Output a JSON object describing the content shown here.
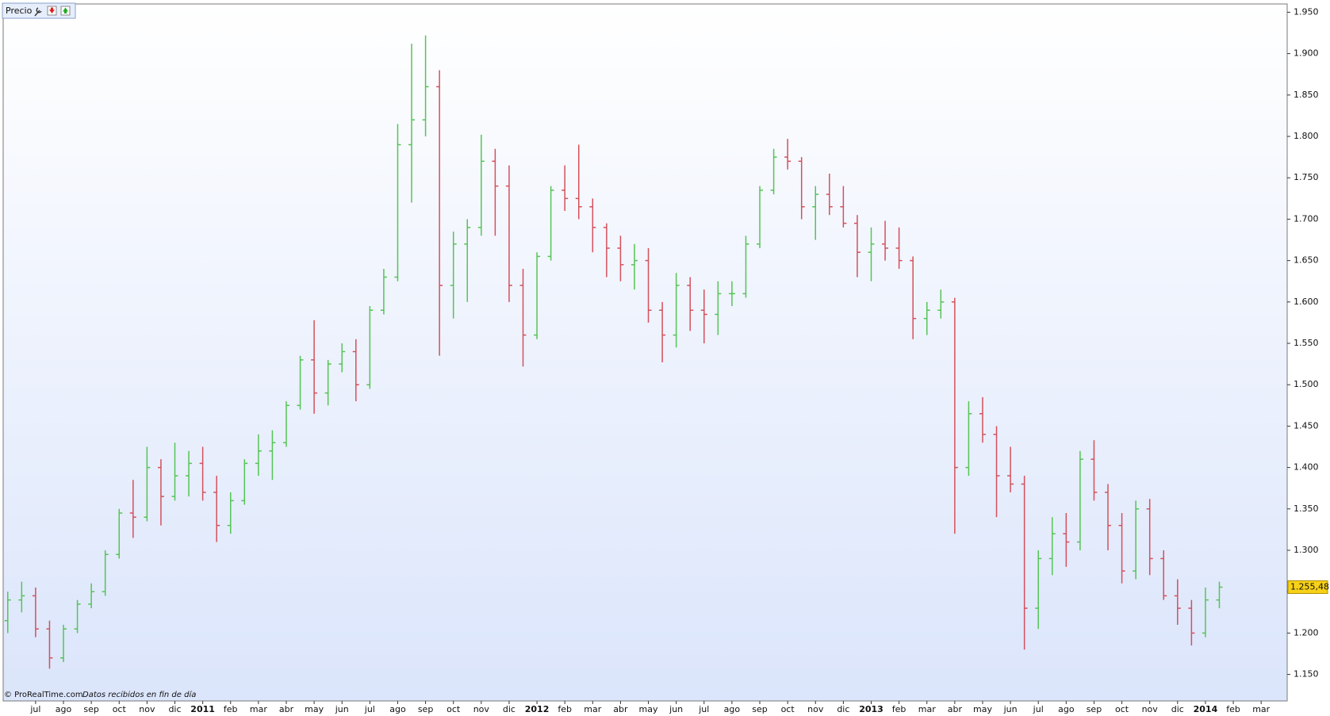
{
  "chart_data": {
    "type": "ohlc",
    "legend_label": "Precio",
    "footer_brand": "© ProRealTime.com",
    "footer_note": "Datos recibidos en fin de día",
    "up_color": "#55c455",
    "down_color": "#d4505c",
    "grid": false,
    "categories": [
      null,
      null,
      "jul",
      null,
      "ago",
      null,
      "sep",
      null,
      "oct",
      null,
      "nov",
      null,
      "dic",
      null,
      "2011",
      null,
      "feb",
      null,
      "mar",
      null,
      "abr",
      null,
      "may",
      null,
      "jun",
      null,
      "jul",
      null,
      "ago",
      null,
      "sep",
      null,
      "oct",
      null,
      "nov",
      null,
      "dic",
      null,
      "2012",
      null,
      "feb",
      null,
      "mar",
      null,
      "abr",
      null,
      "may",
      null,
      "jun",
      null,
      "jul",
      null,
      "ago",
      null,
      "sep",
      null,
      "oct",
      null,
      "nov",
      null,
      "dic",
      null,
      "2013",
      null,
      "feb",
      null,
      "mar",
      null,
      "abr",
      null,
      "may",
      null,
      "jun",
      null,
      "jul",
      null,
      "ago",
      null,
      "sep",
      null,
      "oct",
      null,
      "nov",
      null,
      "dic",
      null,
      "2014",
      null,
      "feb",
      null,
      "mar",
      null
    ],
    "open": [
      1215,
      1240,
      1245,
      1205,
      1170,
      1205,
      1235,
      1250,
      1295,
      1345,
      1340,
      1400,
      1365,
      1390,
      1405,
      1370,
      1330,
      1360,
      1405,
      1420,
      1430,
      1475,
      1530,
      1490,
      1525,
      1540,
      1500,
      1590,
      1630,
      1790,
      1820,
      1860,
      1620,
      1670,
      1690,
      1770,
      1740,
      1620,
      1560,
      1655,
      1735,
      1725,
      1715,
      1690,
      1665,
      1645,
      1650,
      1590,
      1560,
      1620,
      1590,
      1585,
      1610,
      1610,
      1670,
      1735,
      1775,
      1770,
      1715,
      1730,
      1715,
      1695,
      1660,
      1670,
      1665,
      1650,
      1580,
      1590,
      1600,
      1400,
      1465,
      1440,
      1390,
      1380,
      1230,
      1290,
      1320,
      1310,
      1410,
      1370,
      1330,
      1275,
      1350,
      1290,
      1245,
      1230,
      1200,
      1240,
      null,
      null,
      null,
      null
    ],
    "high": [
      1250,
      1262,
      1255,
      1215,
      1210,
      1240,
      1260,
      1300,
      1350,
      1385,
      1425,
      1410,
      1430,
      1420,
      1425,
      1390,
      1370,
      1410,
      1440,
      1445,
      1480,
      1535,
      1578,
      1530,
      1550,
      1555,
      1595,
      1640,
      1815,
      1912,
      1922,
      1880,
      1685,
      1700,
      1802,
      1785,
      1765,
      1640,
      1660,
      1740,
      1765,
      1790,
      1725,
      1695,
      1680,
      1670,
      1665,
      1600,
      1635,
      1630,
      1615,
      1625,
      1625,
      1680,
      1740,
      1785,
      1797,
      1775,
      1740,
      1755,
      1740,
      1705,
      1690,
      1698,
      1690,
      1655,
      1600,
      1615,
      1605,
      1480,
      1485,
      1450,
      1425,
      1390,
      1300,
      1340,
      1345,
      1420,
      1433,
      1380,
      1345,
      1360,
      1362,
      1300,
      1265,
      1240,
      1255,
      1262,
      null,
      null,
      null,
      null
    ],
    "low": [
      1200,
      1225,
      1195,
      1157,
      1165,
      1200,
      1230,
      1245,
      1290,
      1315,
      1335,
      1330,
      1360,
      1365,
      1360,
      1310,
      1320,
      1355,
      1390,
      1385,
      1425,
      1470,
      1465,
      1475,
      1515,
      1480,
      1495,
      1585,
      1625,
      1720,
      1800,
      1535,
      1580,
      1600,
      1680,
      1680,
      1600,
      1522,
      1555,
      1650,
      1710,
      1700,
      1660,
      1630,
      1625,
      1615,
      1575,
      1527,
      1545,
      1565,
      1550,
      1560,
      1595,
      1605,
      1665,
      1730,
      1760,
      1700,
      1675,
      1705,
      1690,
      1630,
      1625,
      1650,
      1640,
      1555,
      1560,
      1580,
      1320,
      1390,
      1430,
      1340,
      1370,
      1180,
      1205,
      1270,
      1280,
      1300,
      1360,
      1300,
      1260,
      1265,
      1270,
      1240,
      1210,
      1185,
      1195,
      1230,
      null,
      null,
      null,
      null
    ],
    "close": [
      1240,
      1245,
      1205,
      1170,
      1205,
      1235,
      1250,
      1295,
      1345,
      1340,
      1400,
      1365,
      1390,
      1405,
      1370,
      1330,
      1360,
      1405,
      1420,
      1430,
      1475,
      1530,
      1490,
      1525,
      1540,
      1500,
      1590,
      1630,
      1790,
      1820,
      1860,
      1620,
      1670,
      1690,
      1770,
      1740,
      1620,
      1560,
      1655,
      1735,
      1725,
      1715,
      1690,
      1665,
      1645,
      1650,
      1590,
      1560,
      1620,
      1590,
      1585,
      1610,
      1610,
      1670,
      1735,
      1775,
      1770,
      1715,
      1730,
      1715,
      1695,
      1660,
      1670,
      1665,
      1650,
      1580,
      1590,
      1600,
      1400,
      1465,
      1440,
      1390,
      1380,
      1230,
      1290,
      1320,
      1310,
      1410,
      1370,
      1330,
      1275,
      1350,
      1290,
      1245,
      1230,
      1200,
      1240,
      1255.48,
      null,
      null,
      null,
      null
    ],
    "last_price": {
      "value": 1255.48,
      "label": "1.255,48"
    },
    "ylim": [
      1118,
      1960
    ],
    "yticks": [
      {
        "value": 1150,
        "label": "1.150"
      },
      {
        "value": 1200,
        "label": "1.200"
      },
      {
        "value": 1250,
        "label": "1.250"
      },
      {
        "value": 1300,
        "label": "1.300"
      },
      {
        "value": 1350,
        "label": "1.350"
      },
      {
        "value": 1400,
        "label": "1.400"
      },
      {
        "value": 1450,
        "label": "1.450"
      },
      {
        "value": 1500,
        "label": "1.500"
      },
      {
        "value": 1550,
        "label": "1.550"
      },
      {
        "value": 1600,
        "label": "1.600"
      },
      {
        "value": 1650,
        "label": "1.650"
      },
      {
        "value": 1700,
        "label": "1.700"
      },
      {
        "value": 1750,
        "label": "1.750"
      },
      {
        "value": 1800,
        "label": "1.800"
      },
      {
        "value": 1850,
        "label": "1.850"
      },
      {
        "value": 1900,
        "label": "1.900"
      },
      {
        "value": 1950,
        "label": "1.950"
      }
    ]
  }
}
